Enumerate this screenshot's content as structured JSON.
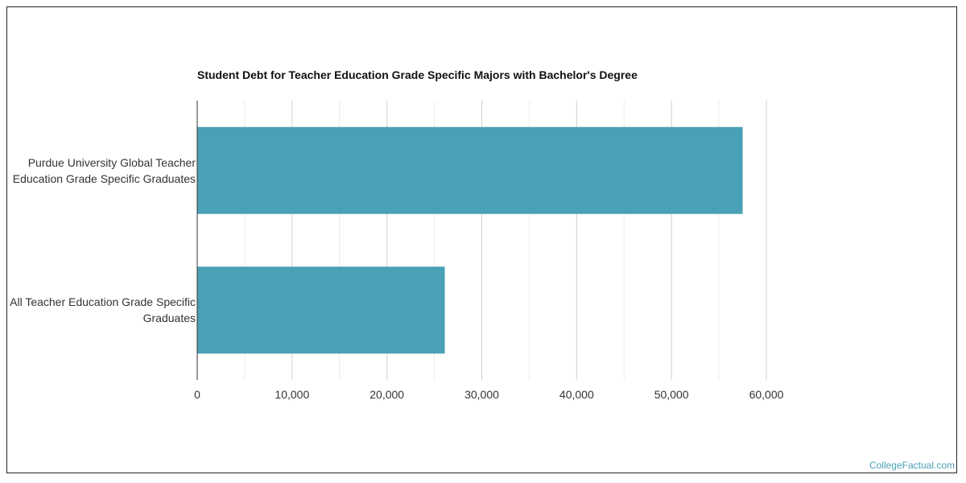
{
  "chart_data": {
    "type": "bar",
    "orientation": "horizontal",
    "title": "Student Debt for Teacher Education Grade Specific Majors with Bachelor's Degree",
    "categories": [
      "Purdue University Global Teacher Education Grade Specific Graduates",
      "All Teacher Education Grade Specific Graduates"
    ],
    "values": [
      57500,
      26100
    ],
    "xlim": [
      0,
      60000
    ],
    "x_ticks": [
      "0",
      "10,000",
      "20,000",
      "30,000",
      "40,000",
      "50,000",
      "60,000"
    ],
    "xlabel": "",
    "ylabel": "",
    "grid": true,
    "legend": "none",
    "bar_color": "#4aa0b5"
  },
  "watermark": "CollegeFactual.com"
}
